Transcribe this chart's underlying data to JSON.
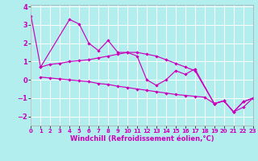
{
  "background_color": "#b2eeee",
  "line_color": "#cc00bb",
  "grid_color": "#ffffff",
  "xlabel": "Windchill (Refroidissement éolien,°C)",
  "xlabel_fontsize": 6,
  "xtick_fontsize": 5,
  "ytick_fontsize": 6,
  "xlim": [
    0,
    23
  ],
  "ylim": [
    -2.5,
    4.1
  ],
  "yticks": [
    -2,
    -1,
    0,
    1,
    2,
    3,
    4
  ],
  "xticks": [
    0,
    1,
    2,
    3,
    4,
    5,
    6,
    7,
    8,
    9,
    10,
    11,
    12,
    13,
    14,
    15,
    16,
    17,
    18,
    19,
    20,
    21,
    22,
    23
  ],
  "line1_x": [
    0,
    1,
    4,
    5,
    6,
    7,
    8,
    9,
    10,
    11,
    12,
    13,
    14,
    15,
    16,
    17,
    19,
    20,
    21,
    22,
    23
  ],
  "line1_y": [
    3.5,
    0.7,
    3.3,
    3.05,
    2.0,
    1.6,
    2.15,
    1.5,
    1.5,
    1.3,
    0.0,
    -0.3,
    0.0,
    0.5,
    0.3,
    0.6,
    -1.3,
    -1.15,
    -1.75,
    -1.2,
    -1.0
  ],
  "line2_x": [
    1,
    2,
    3,
    4,
    5,
    6,
    7,
    8,
    9,
    10,
    11,
    12,
    13,
    14,
    15,
    16,
    17,
    19,
    20,
    21,
    22,
    23
  ],
  "line2_y": [
    0.7,
    0.85,
    0.9,
    1.0,
    1.05,
    1.1,
    1.2,
    1.3,
    1.4,
    1.5,
    1.5,
    1.4,
    1.3,
    1.1,
    0.9,
    0.7,
    0.5,
    -1.3,
    -1.15,
    -1.75,
    -1.2,
    -1.0
  ],
  "line3_x": [
    1,
    2,
    3,
    4,
    5,
    6,
    7,
    8,
    9,
    10,
    11,
    12,
    13,
    14,
    15,
    16,
    17,
    18,
    19,
    20,
    21,
    22,
    23
  ],
  "line3_y": [
    0.15,
    0.1,
    0.05,
    0.0,
    -0.05,
    -0.1,
    -0.2,
    -0.25,
    -0.35,
    -0.42,
    -0.5,
    -0.57,
    -0.65,
    -0.72,
    -0.8,
    -0.85,
    -0.9,
    -0.95,
    -1.3,
    -1.15,
    -1.75,
    -1.5,
    -1.0
  ]
}
